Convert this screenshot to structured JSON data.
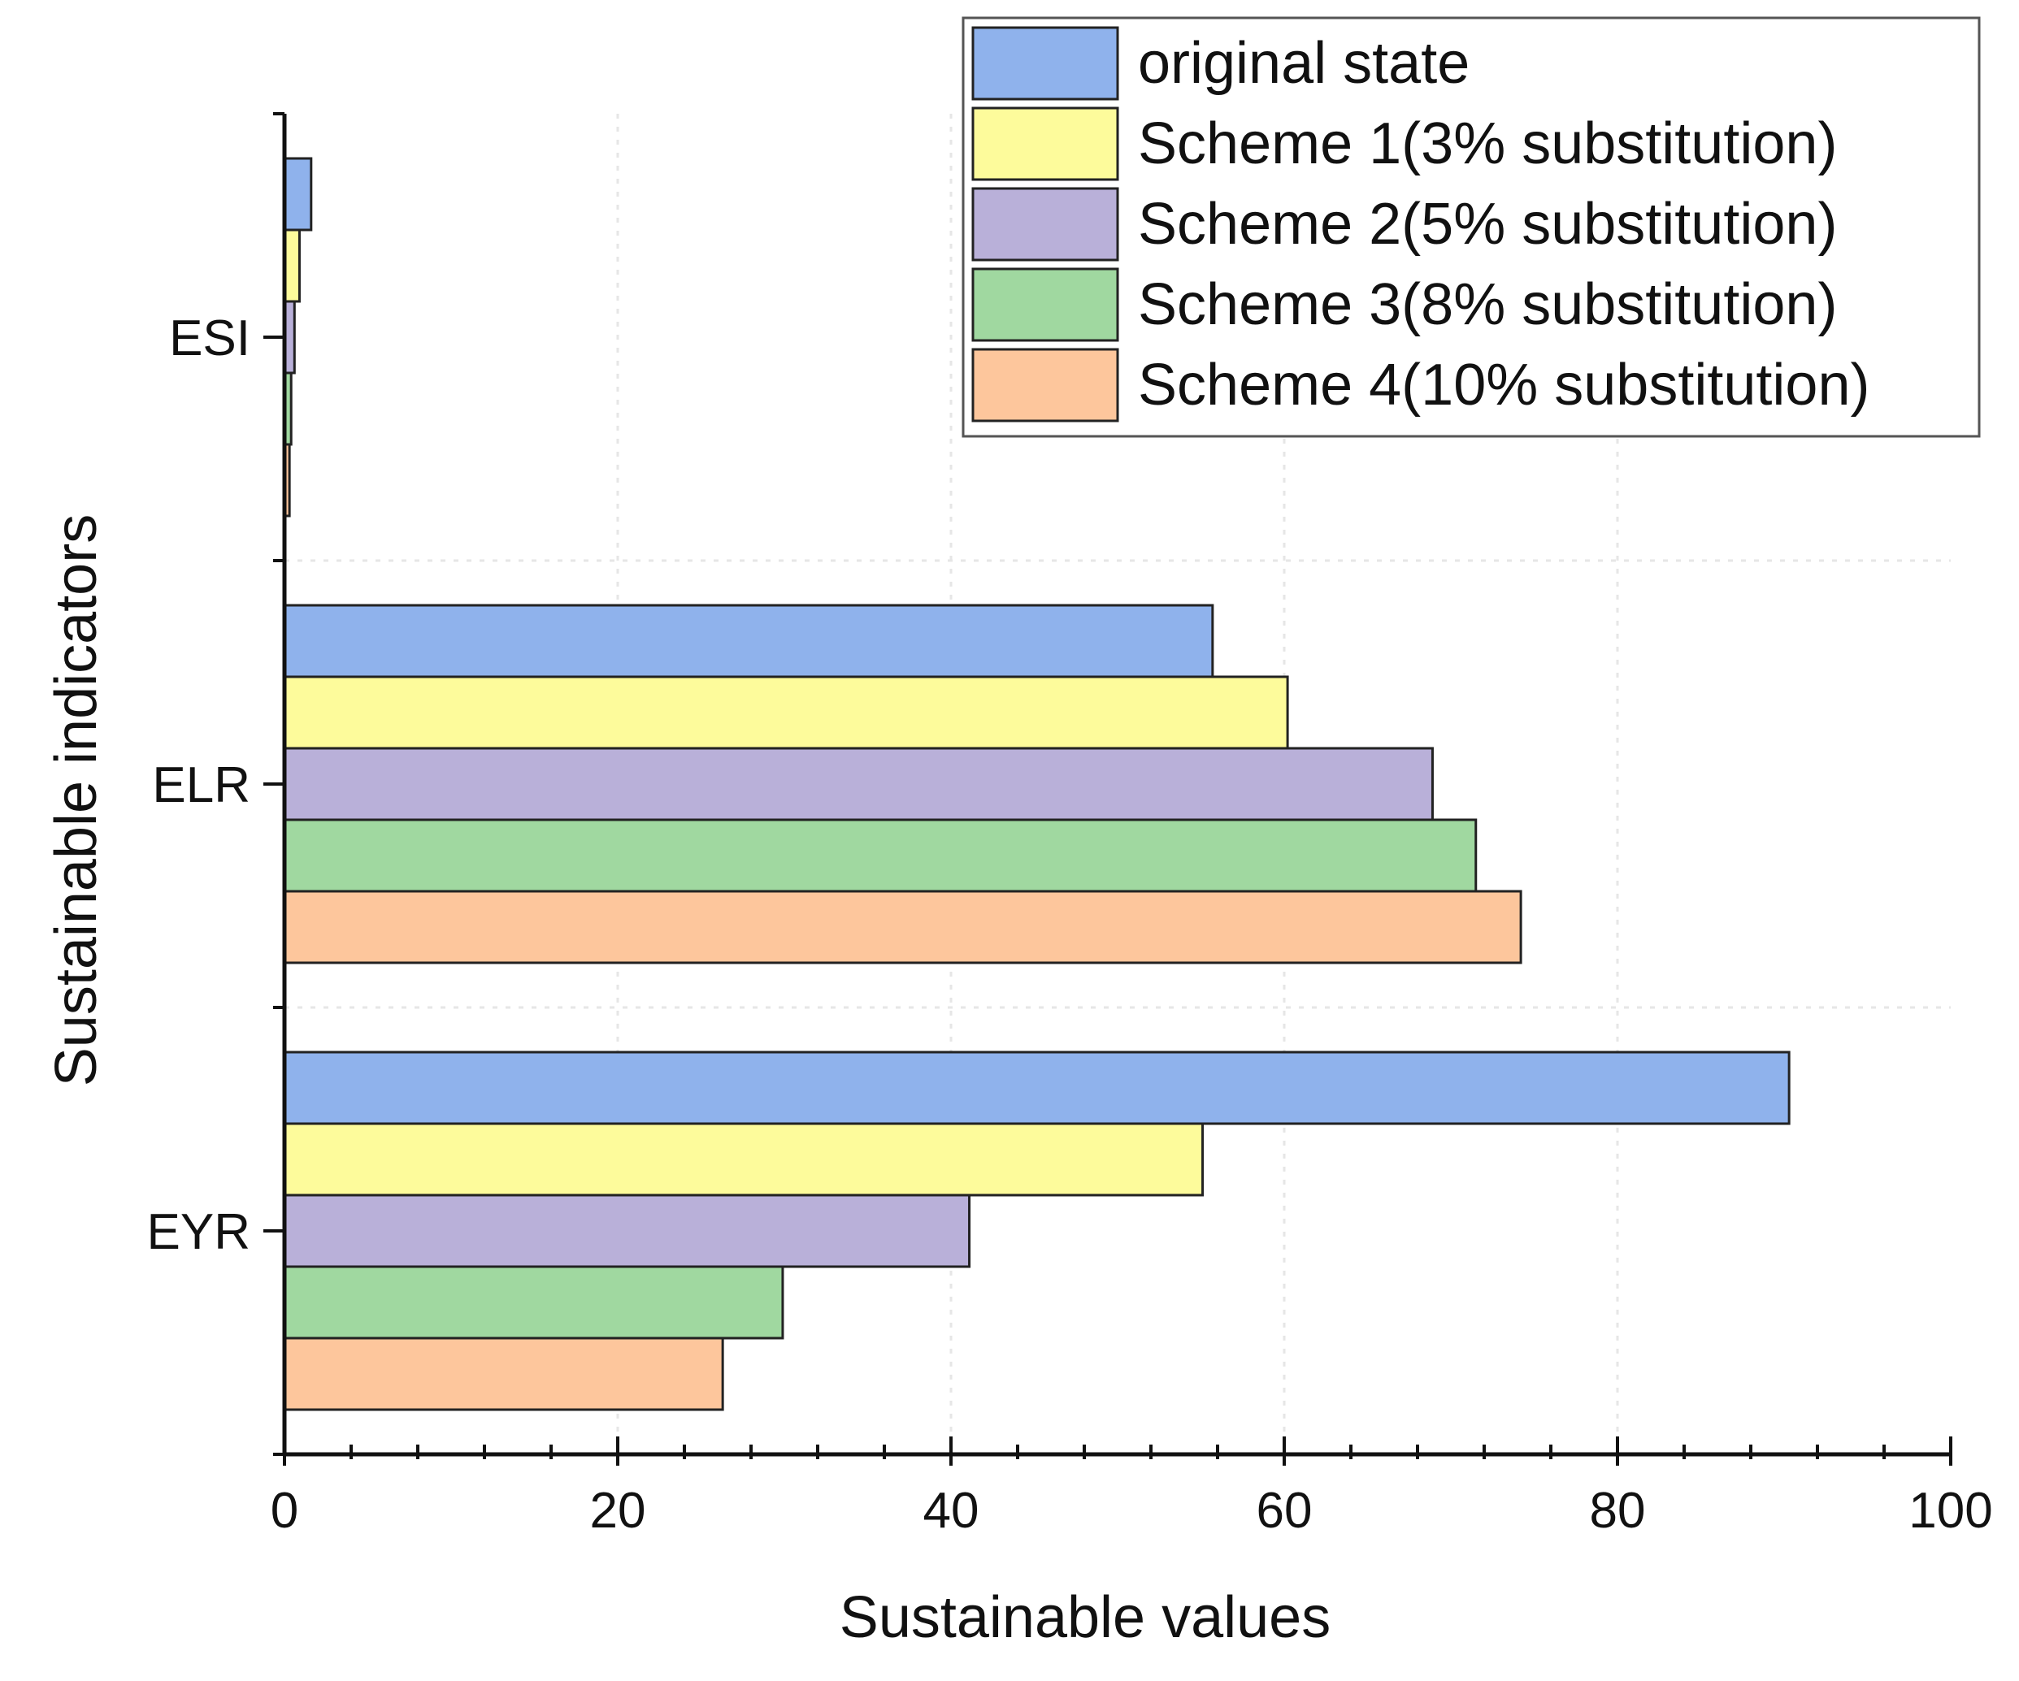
{
  "chart_data": {
    "type": "bar",
    "orientation": "horizontal",
    "title": "",
    "xlabel": "Sustainable values",
    "ylabel": "Sustainable indicators",
    "xlim": [
      0,
      100
    ],
    "x_ticks": [
      0,
      20,
      40,
      60,
      80,
      100
    ],
    "x_minor_step": 4,
    "categories": [
      "ESI",
      "ELR",
      "EYR"
    ],
    "legend_position": "top-right",
    "grid": true,
    "series": [
      {
        "name": "original state",
        "color": "#8fb2ec",
        "values": [
          1.6,
          55.7,
          90.3
        ]
      },
      {
        "name": "Scheme 1(3% substitution)",
        "color": "#fdfb9b",
        "values": [
          0.9,
          60.2,
          55.1
        ]
      },
      {
        "name": "Scheme 2(5% substitution)",
        "color": "#b9b0d9",
        "values": [
          0.6,
          68.9,
          41.1
        ]
      },
      {
        "name": "Scheme 3(8% substitution)",
        "color": "#a0d8a0",
        "values": [
          0.4,
          71.5,
          29.9
        ]
      },
      {
        "name": "Scheme 4(10% substitution)",
        "color": "#fdc69c",
        "values": [
          0.3,
          74.2,
          26.3
        ]
      }
    ]
  }
}
